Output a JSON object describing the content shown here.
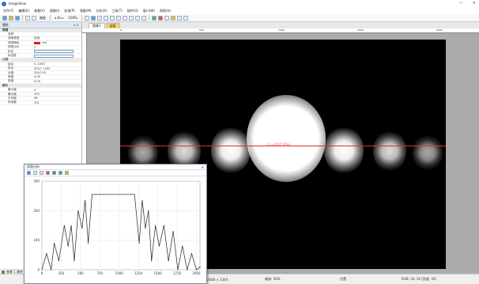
{
  "window": {
    "title": "ImageView",
    "min": "—",
    "close": "×"
  },
  "menu": [
    "文件(F)",
    "编辑(E)",
    "查看(V)",
    "图像(I)",
    "处理(P)",
    "测量(M)",
    "分析(A)",
    "工具(T)",
    "插件(U)",
    "窗口(W)",
    "帮助(H)"
  ],
  "toolbar": {
    "zoom_label": "缩放",
    "zoom_value": "100%",
    "zoom2": "◂ 4x ▸"
  },
  "panel": {
    "title": "属性",
    "rows": [
      {
        "k": "常规",
        "v": "",
        "cat": true
      },
      {
        "k": "名称",
        "v": ""
      },
      {
        "k": "线条类型",
        "v": "实线"
      },
      {
        "k": "线条颜色",
        "v": "red",
        "swatch": true
      },
      {
        "k": "线宽(px)",
        "v": "1"
      },
      {
        "k": "标注",
        "v": "",
        "input": true
      },
      {
        "k": "标注框",
        "v": "",
        "input": true
      },
      {
        "k": "几何",
        "v": "",
        "cat": true
      },
      {
        "k": "起点",
        "v": "0, 1095"
      },
      {
        "k": "终点",
        "v": "2047, 1095"
      },
      {
        "k": "长度",
        "v": "2047.00"
      },
      {
        "k": "角度",
        "v": "0.00"
      },
      {
        "k": "宽度",
        "v": "0.00"
      },
      {
        "k": "统计",
        "v": "",
        "cat": true
      },
      {
        "k": "最小值",
        "v": "0"
      },
      {
        "k": "最大值",
        "v": "255"
      },
      {
        "k": "平均值",
        "v": "98"
      },
      {
        "k": "标准差",
        "v": "101"
      }
    ],
    "status": "图像 1 属性"
  },
  "tabs": [
    "图像1",
    "剖面"
  ],
  "ruler_ticks": [
    "0",
    "500",
    "1000",
    "1500",
    "2000"
  ],
  "measure_label": "L1=2047.00px",
  "statusbar": {
    "size": "2048 × 1344",
    "zoom": "缩放: 50%",
    "pos": "位置",
    "pixel": "RGB: 34, 34 (亮度: 34)"
  },
  "profile": {
    "title": "剖面分析",
    "y_ticks": [
      "300",
      "200",
      "100",
      "0"
    ],
    "x_ticks": [
      "0",
      "250",
      "500",
      "750",
      "1000",
      "1250",
      "1500",
      "1750",
      "2000"
    ]
  },
  "chart_data": {
    "type": "line",
    "title": "",
    "xlabel": "",
    "ylabel": "",
    "xlim": [
      0,
      2047
    ],
    "ylim": [
      0,
      300
    ],
    "x": [
      0,
      60,
      120,
      160,
      220,
      290,
      340,
      380,
      420,
      470,
      520,
      560,
      600,
      650,
      700,
      760,
      800,
      1150,
      1200,
      1260,
      1300,
      1340,
      1380,
      1420,
      1470,
      1520,
      1580,
      1640,
      1700,
      1760,
      1820,
      1880,
      1940,
      2000,
      2047
    ],
    "series": [
      {
        "values": [
          0,
          55,
          0,
          90,
          30,
          150,
          80,
          150,
          30,
          200,
          140,
          235,
          90,
          255,
          255,
          255,
          255,
          255,
          255,
          90,
          235,
          140,
          200,
          30,
          150,
          80,
          150,
          30,
          130,
          0,
          80,
          0,
          55,
          0,
          10
        ]
      }
    ],
    "grid": true,
    "color": "#222222"
  },
  "colors": {
    "measure_line": "#e03030",
    "accent": "#2a6fd6",
    "tab_inactive": "#f5d36a"
  }
}
